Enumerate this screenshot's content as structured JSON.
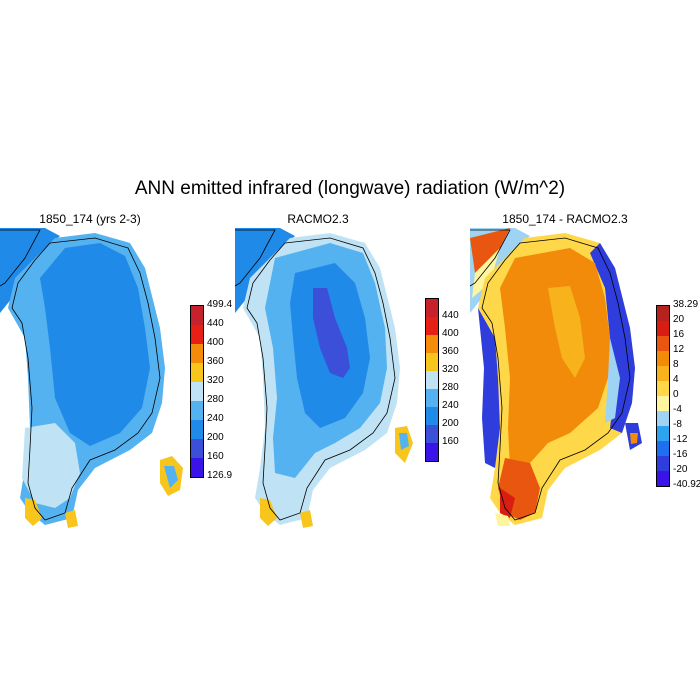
{
  "figure": {
    "title": "ANN emitted infrared (longwave) radiation (W/m^2)"
  },
  "panels": [
    {
      "title": "1850_174 (yrs 2-3)",
      "colorbar": {
        "colors": [
          "#3a13e8",
          "#3b4fd9",
          "#1f8ae8",
          "#55b2f0",
          "#bfe3f4",
          "#f7c51c",
          "#f58b0a",
          "#e81f14",
          "#c6222b"
        ],
        "labels": [
          "499.4",
          "440",
          "400",
          "360",
          "320",
          "280",
          "240",
          "200",
          "160",
          "126.9"
        ]
      }
    },
    {
      "title": "RACMO2.3",
      "colorbar": {
        "colors": [
          "#3a13e8",
          "#3b4fd9",
          "#1f8ae8",
          "#55b2f0",
          "#bfe3f4",
          "#f7c51c",
          "#f58b0a",
          "#e81f14",
          "#c6222b"
        ],
        "labels": [
          "440",
          "400",
          "360",
          "320",
          "280",
          "240",
          "200",
          "160"
        ]
      }
    },
    {
      "title": "1850_174 - RACMO2.3",
      "colorbar": {
        "colors": [
          "#3a13e8",
          "#2e3ddb",
          "#1f6ff0",
          "#2ea4ef",
          "#9fd3f3",
          "#fff59e",
          "#ffd84a",
          "#f7b21c",
          "#f28b0a",
          "#e8560f",
          "#d81d12",
          "#b8221e"
        ],
        "labels": [
          "38.29",
          "20",
          "16",
          "12",
          "8",
          "4",
          "0",
          "-4",
          "-8",
          "-12",
          "-16",
          "-20",
          "-40.92"
        ]
      }
    }
  ]
}
